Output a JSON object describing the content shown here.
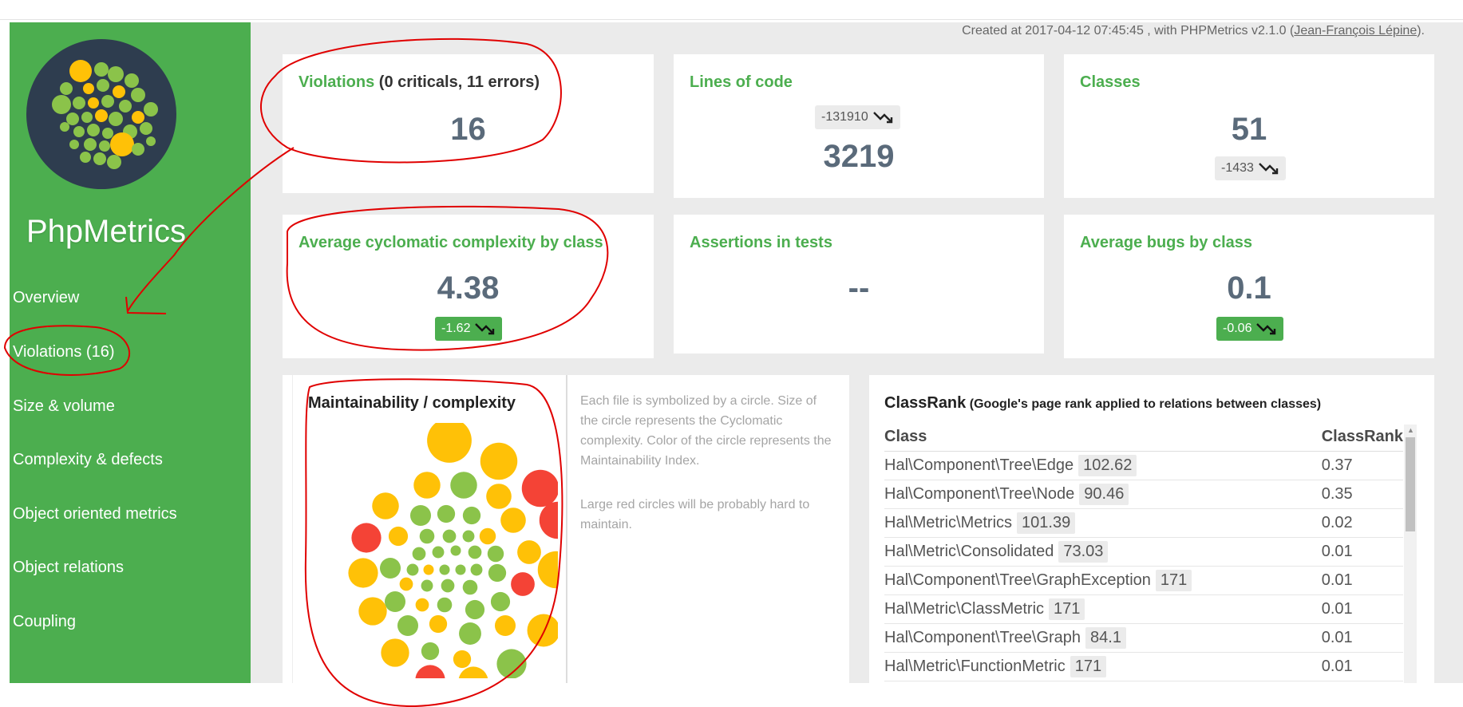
{
  "app": {
    "name": "PhpMetrics",
    "credits": {
      "prefix": "Created at 2017-04-12 07:45:45 , with PHPMetrics v2.1.0 (",
      "author": "Jean-François Lépine",
      "suffix": ")."
    }
  },
  "sidebar": {
    "items": [
      {
        "label": "Overview"
      },
      {
        "label": "Violations (16)"
      },
      {
        "label": "Size & volume"
      },
      {
        "label": "Complexity & defects"
      },
      {
        "label": "Object oriented metrics"
      },
      {
        "label": "Object relations"
      },
      {
        "label": "Coupling"
      }
    ]
  },
  "cards": {
    "violations": {
      "title": "Violations",
      "subtitle": "(0 criticals, 11 errors)",
      "value": "16"
    },
    "loc": {
      "title": "Lines of code",
      "delta": "-131910",
      "value": "3219"
    },
    "classes": {
      "title": "Classes",
      "value": "51",
      "delta": "-1433"
    },
    "ccn": {
      "title": "Average cyclomatic complexity by class",
      "value": "4.38",
      "delta": "-1.62"
    },
    "assertions": {
      "title": "Assertions in tests",
      "value": "--"
    },
    "bugs": {
      "title": "Average bugs by class",
      "value": "0.1",
      "delta": "-0.06"
    }
  },
  "maintainability": {
    "title": "Maintainability / complexity",
    "description": [
      "Each file is symbolized by a circle. Size of the circle represents the Cyclomatic complexity. Color of the circle represents the Maintainability Index.",
      "Large red circles will be probably hard to maintain."
    ]
  },
  "classrank": {
    "title": "ClassRank",
    "subtitle": "(Google's page rank applied to relations between classes)",
    "columns": [
      "Class",
      "ClassRank"
    ],
    "rows": [
      {
        "class": "Hal\\Component\\Tree\\Edge",
        "value": "102.62",
        "rank": "0.37"
      },
      {
        "class": "Hal\\Component\\Tree\\Node",
        "value": "90.46",
        "rank": "0.35"
      },
      {
        "class": "Hal\\Metric\\Metrics",
        "value": "101.39",
        "rank": "0.02"
      },
      {
        "class": "Hal\\Metric\\Consolidated",
        "value": "73.03",
        "rank": "0.01"
      },
      {
        "class": "Hal\\Component\\Tree\\GraphException",
        "value": "171",
        "rank": "0.01"
      },
      {
        "class": "Hal\\Metric\\ClassMetric",
        "value": "171",
        "rank": "0.01"
      },
      {
        "class": "Hal\\Component\\Tree\\Graph",
        "value": "84.1",
        "rank": "0.01"
      },
      {
        "class": "Hal\\Metric\\FunctionMetric",
        "value": "171",
        "rank": "0.01"
      }
    ]
  },
  "colors": {
    "brand_green": "#4cae4f",
    "circle_green": "#8bc34a",
    "circle_yellow": "#ffc107",
    "circle_red": "#f44336",
    "logo_bg": "#2e3d4f",
    "annotation": "#e00000"
  }
}
